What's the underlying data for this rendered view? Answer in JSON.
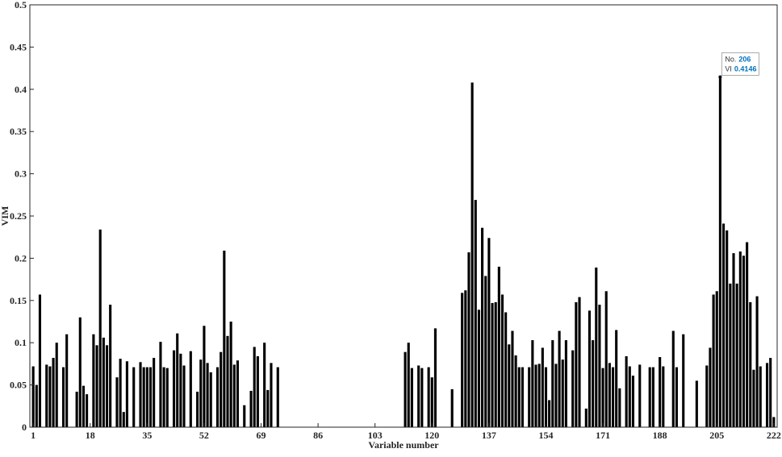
{
  "chart_data": {
    "type": "bar",
    "xlabel": "Variable number",
    "ylabel": "VIM",
    "color": "#000000",
    "x": [
      1,
      2,
      3,
      5,
      6,
      7,
      8,
      10,
      11,
      14,
      15,
      16,
      17,
      19,
      20,
      21,
      22,
      23,
      24,
      26,
      27,
      28,
      29,
      31,
      33,
      34,
      35,
      36,
      37,
      39,
      40,
      41,
      43,
      44,
      45,
      46,
      48,
      50,
      51,
      52,
      53,
      54,
      56,
      57,
      58,
      59,
      60,
      61,
      62,
      64,
      66,
      67,
      68,
      70,
      71,
      72,
      74,
      112,
      113,
      114,
      116,
      117,
      119,
      120,
      121,
      126,
      129,
      130,
      131,
      132,
      133,
      134,
      135,
      136,
      137,
      138,
      139,
      140,
      141,
      142,
      143,
      144,
      145,
      146,
      147,
      149,
      150,
      151,
      152,
      153,
      154,
      155,
      156,
      157,
      158,
      159,
      160,
      162,
      163,
      164,
      166,
      167,
      168,
      169,
      170,
      171,
      172,
      173,
      174,
      175,
      176,
      178,
      179,
      180,
      182,
      185,
      186,
      188,
      189,
      192,
      193,
      195,
      199,
      202,
      203,
      204,
      205,
      206,
      207,
      208,
      209,
      210,
      211,
      212,
      213,
      214,
      215,
      216,
      217,
      218,
      220,
      221,
      222
    ],
    "values": [
      0.072,
      0.05,
      0.157,
      0.074,
      0.072,
      0.082,
      0.1,
      0.071,
      0.11,
      0.042,
      0.13,
      0.049,
      0.039,
      0.11,
      0.097,
      0.234,
      0.106,
      0.097,
      0.145,
      0.059,
      0.081,
      0.018,
      0.078,
      0.071,
      0.077,
      0.071,
      0.071,
      0.071,
      0.082,
      0.101,
      0.071,
      0.07,
      0.091,
      0.111,
      0.087,
      0.073,
      0.09,
      0.042,
      0.08,
      0.12,
      0.076,
      0.065,
      0.071,
      0.089,
      0.209,
      0.108,
      0.125,
      0.074,
      0.079,
      0.026,
      0.043,
      0.095,
      0.084,
      0.1,
      0.044,
      0.076,
      0.071,
      0.089,
      0.1,
      0.07,
      0.073,
      0.07,
      0.071,
      0.059,
      0.117,
      0.045,
      0.159,
      0.162,
      0.207,
      0.408,
      0.269,
      0.139,
      0.236,
      0.179,
      0.224,
      0.147,
      0.148,
      0.19,
      0.157,
      0.136,
      0.098,
      0.114,
      0.085,
      0.071,
      0.071,
      0.071,
      0.103,
      0.074,
      0.075,
      0.094,
      0.071,
      0.032,
      0.103,
      0.075,
      0.114,
      0.08,
      0.103,
      0.091,
      0.148,
      0.154,
      0.022,
      0.138,
      0.103,
      0.189,
      0.145,
      0.07,
      0.161,
      0.076,
      0.071,
      0.115,
      0.046,
      0.084,
      0.072,
      0.061,
      0.074,
      0.071,
      0.071,
      0.083,
      0.072,
      0.114,
      0.071,
      0.11,
      0.055,
      0.073,
      0.094,
      0.157,
      0.161,
      0.4146,
      0.241,
      0.233,
      0.17,
      0.206,
      0.17,
      0.208,
      0.203,
      0.219,
      0.148,
      0.068,
      0.155,
      0.072,
      0.076,
      0.082,
      0.012
    ],
    "xlim": [
      0,
      223
    ],
    "xticks": [
      1,
      18,
      35,
      52,
      69,
      86,
      103,
      120,
      137,
      154,
      171,
      188,
      205,
      222
    ],
    "ylim": [
      0,
      0.5
    ],
    "yticks": [
      0,
      0.05,
      0.1,
      0.15,
      0.2,
      0.25,
      0.3,
      0.35,
      0.4,
      0.45,
      0.5
    ],
    "datatip": {
      "x_label": "No.",
      "x": 206,
      "y_label": "VI",
      "y": 0.4146
    }
  }
}
